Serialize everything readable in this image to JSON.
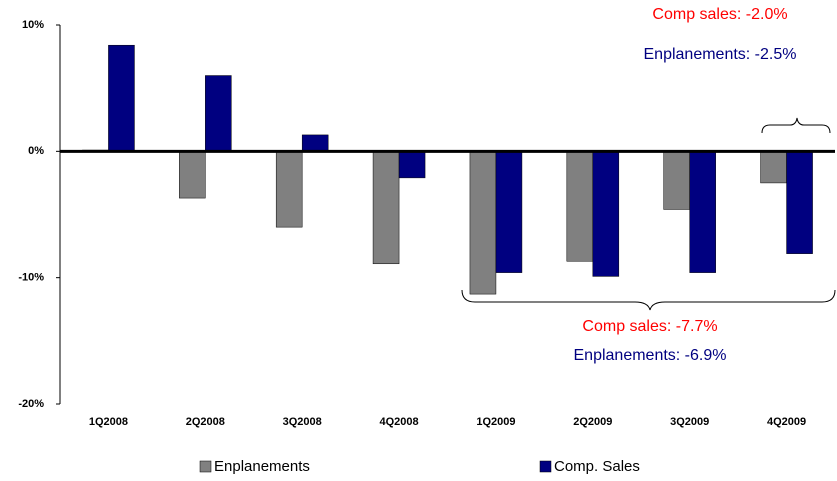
{
  "chart_data": {
    "type": "bar",
    "categories": [
      "1Q2008",
      "2Q2008",
      "3Q2008",
      "4Q2008",
      "1Q2009",
      "2Q2009",
      "3Q2009",
      "4Q2009"
    ],
    "series": [
      {
        "name": "Enplanements",
        "color": "#808080",
        "values": [
          0.1,
          -3.7,
          -6.0,
          -8.9,
          -11.3,
          -8.7,
          -4.6,
          -2.5
        ]
      },
      {
        "name": "Comp. Sales",
        "color": "#000080",
        "values": [
          8.4,
          6.0,
          1.3,
          -2.1,
          -9.6,
          -9.9,
          -9.6,
          -8.1
        ]
      }
    ],
    "ylim": [
      -20,
      10
    ],
    "yticks": [
      {
        "value": -20,
        "label": "-20%"
      },
      {
        "value": -10,
        "label": "-10%"
      },
      {
        "value": 0,
        "label": "0%"
      },
      {
        "value": 10,
        "label": "10%"
      }
    ],
    "annotations": [
      {
        "text": "Comp sales: -2.0%",
        "color": "#ff0000"
      },
      {
        "text": "Enplanements: -2.5%",
        "color": "#000080"
      },
      {
        "text": "Comp sales: -7.7%",
        "color": "#ff0000"
      },
      {
        "text": "Enplanements: -6.9%",
        "color": "#000080"
      }
    ]
  }
}
